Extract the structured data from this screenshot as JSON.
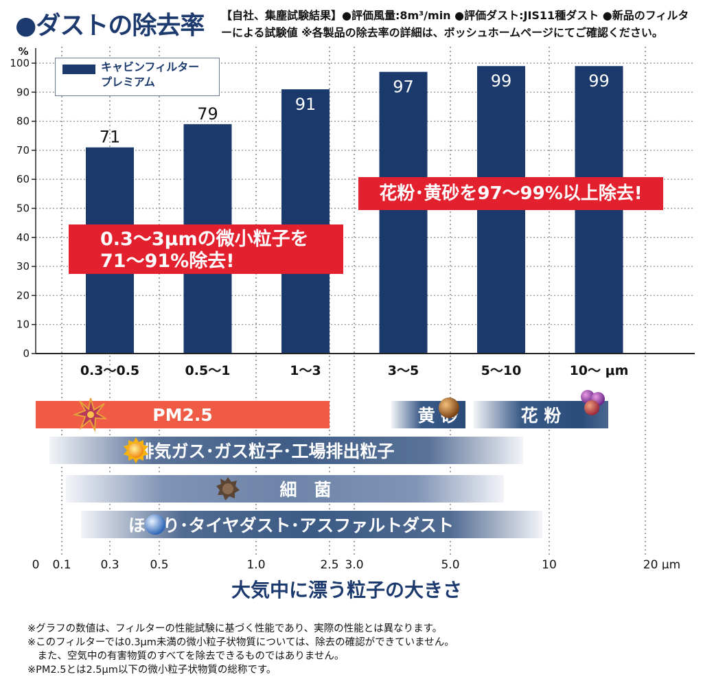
{
  "header": {
    "title": "●ダストの除去率",
    "conditions": "【自社、集塵試験結果】●評価風量:8m³/min ●評価ダスト:JIS11種ダスト ●新品のフィルターによる試験値 ※各製品の除去率の詳細は、ボッシュホームページにてご確認ください。"
  },
  "chart_data": {
    "type": "bar",
    "title": "ダストの除去率",
    "ylabel": "%",
    "ylim": [
      0,
      100
    ],
    "yticks": [
      0,
      10,
      20,
      30,
      40,
      50,
      60,
      70,
      80,
      90,
      100
    ],
    "categories": [
      "0.3～0.5",
      "0.5～1",
      "1～3",
      "3～5",
      "5～10",
      "10～ μm"
    ],
    "series": [
      {
        "name": "キャビンフィルター プレミアム",
        "values": [
          71,
          79,
          91,
          97,
          99,
          99
        ],
        "color": "#1b3a6b"
      }
    ],
    "data_labels": [
      "71",
      "79",
      "91",
      "97",
      "99",
      "99"
    ],
    "legend": {
      "line1": "キャビンフィルター",
      "line2": "プレミアム",
      "position": "top-left"
    },
    "x2axis": {
      "label": "大気中に漂う粒子の大きさ",
      "ticks": [
        "0",
        "0.1",
        "0.3",
        "0.5",
        "1.0",
        "2.5",
        "3.0",
        "5.0",
        "10",
        "20 μm"
      ]
    }
  },
  "callouts": {
    "left_line1": "0.3～3μmの微小粒子を",
    "left_line2": "71～91%除去!",
    "right": "花粉･黄砂を97～99%以上除去!"
  },
  "particle_bands": {
    "pm": "PM2.5",
    "sand": "黄 砂",
    "pollen": "花 粉",
    "exhaust": "排気ガス･ガス粒子･工場排出粒子",
    "bacteria": "細　菌",
    "dust": "ほこり･タイヤダスト･アスファルトダスト"
  },
  "footnotes": [
    "※グラフの数値は、フィルターの性能試験に基づく性能であり、実際の性能とは異なります。",
    "※このフィルターでは0.3μm未満の微小粒子状物質については、除去の確認ができていません。",
    "　また、空気中の有害物質のすべてを除去できるものではありません。",
    "※PM2.5とは2.5μm以下の微小粒子状物質の総称です。"
  ],
  "colors": {
    "bar": "#1b3a6b",
    "callout": "#e3202d",
    "pm_band": "#ef5b45",
    "title": "#1c3a6e",
    "grid": "#8a8a8a"
  }
}
